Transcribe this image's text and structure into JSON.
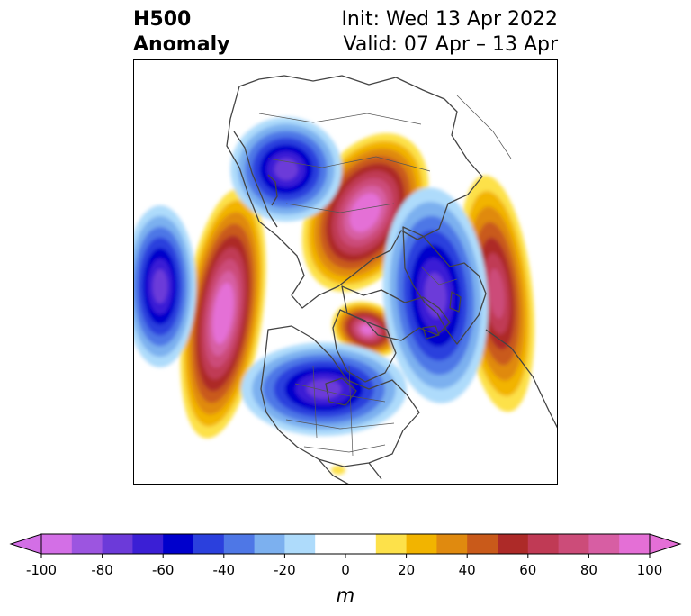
{
  "title": {
    "left_line1": "H500",
    "left_line2": "Anomaly",
    "right_line1": "Init: Wed 13 Apr 2022",
    "right_line2": "Valid: 07 Apr – 13 Apr"
  },
  "map": {
    "projection": "north-polar stereographic",
    "colors": {
      "land_outline": "#444444",
      "frame": "#000000"
    },
    "anomalies": [
      {
        "region": "North Pacific west of Canada",
        "sign": "positive",
        "peak_m": 100
      },
      {
        "region": "Arctic Ocean / Siberia",
        "sign": "positive",
        "peak_m": 100
      },
      {
        "region": "Greenland / Labrador",
        "sign": "positive",
        "peak_m": 90
      },
      {
        "region": "Western Europe / North Atlantic",
        "sign": "positive",
        "peak_m": 70
      },
      {
        "region": "Central North Pacific",
        "sign": "negative",
        "peak_m": -70
      },
      {
        "region": "Central Asia",
        "sign": "negative",
        "peak_m": -70
      },
      {
        "region": "Eastern North America",
        "sign": "negative",
        "peak_m": -70
      },
      {
        "region": "Northeast Atlantic / Scandinavia",
        "sign": "negative",
        "peak_m": -70
      }
    ]
  },
  "colorbar": {
    "unit": "m",
    "min": -100,
    "max": 100,
    "step": 10,
    "ticks": [
      "-100",
      "-80",
      "-60",
      "-40",
      "-20",
      "0",
      "20",
      "40",
      "60",
      "80",
      "100"
    ],
    "tick_values": [
      -100,
      -80,
      -60,
      -40,
      -20,
      0,
      20,
      40,
      60,
      80,
      100
    ],
    "extend": "both",
    "colors": [
      "#d36fe6",
      "#9c55e0",
      "#6c3ad9",
      "#3b1fd5",
      "#0000cc",
      "#2b40dd",
      "#4e77e6",
      "#7cb0ef",
      "#aedbfb",
      "#ffffff",
      "#ffffff",
      "#fde14a",
      "#f2b400",
      "#e08a0f",
      "#c95a1a",
      "#ad2a28",
      "#c03a55",
      "#cc4c79",
      "#d75ea3",
      "#e46fd6"
    ]
  }
}
